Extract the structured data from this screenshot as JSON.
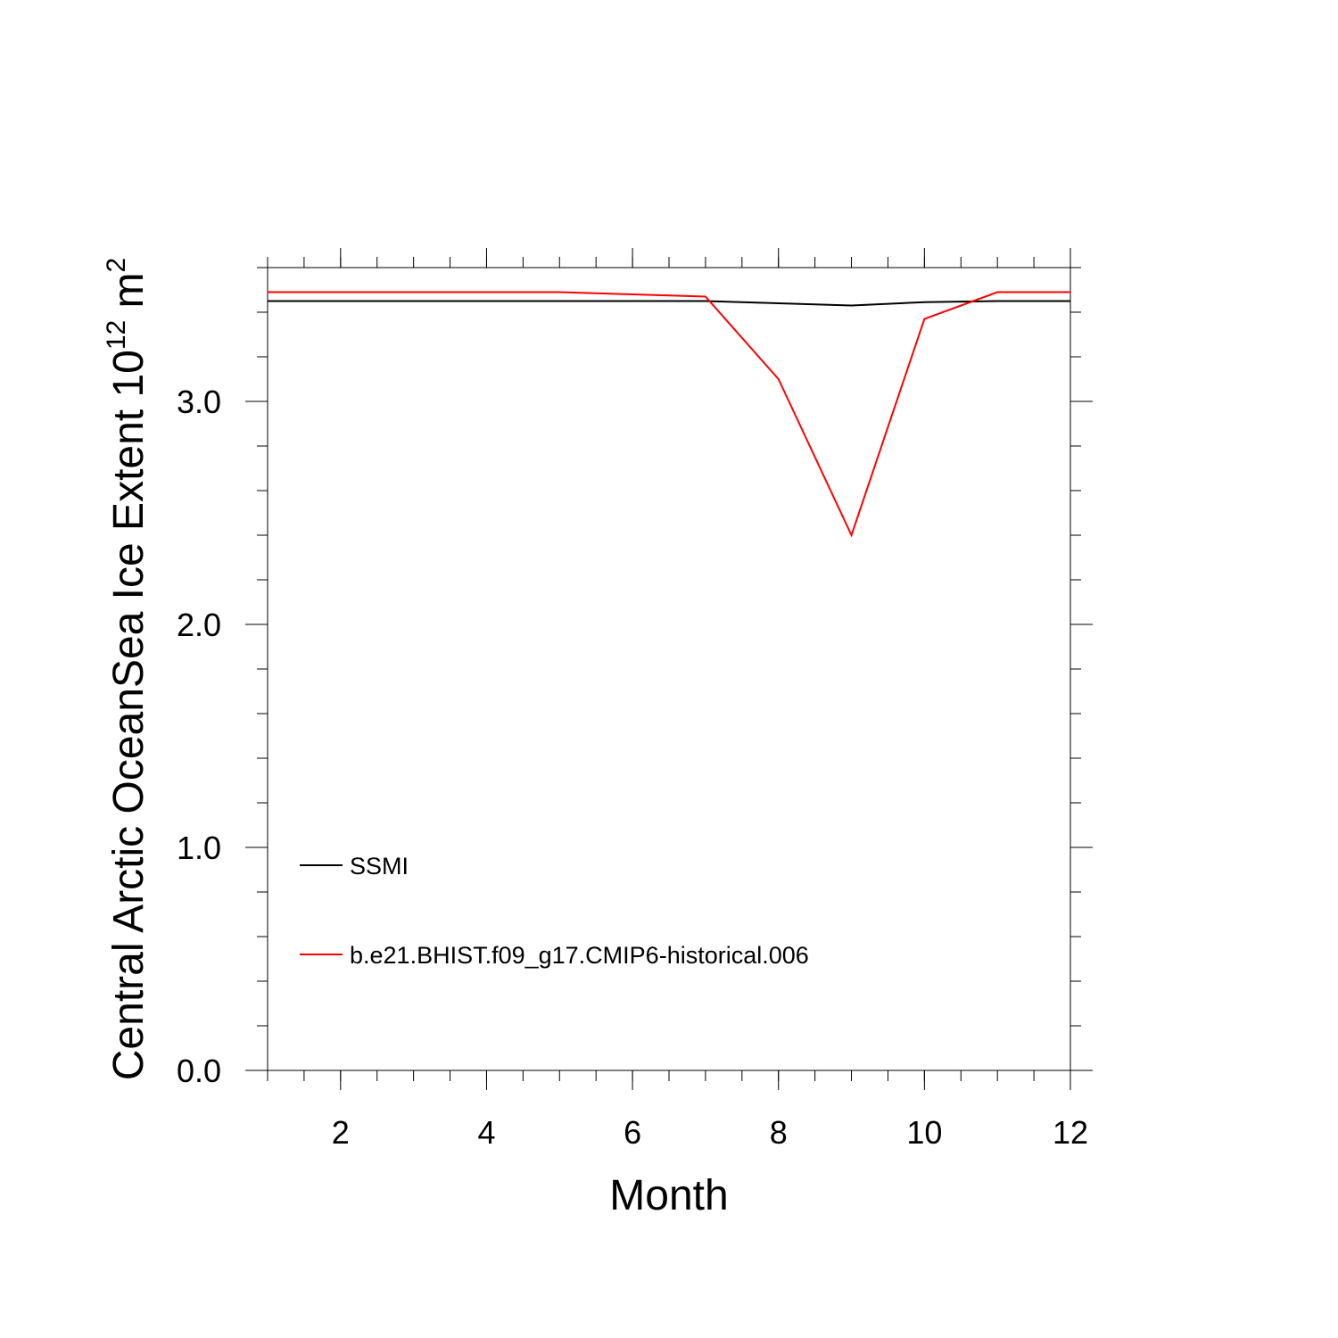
{
  "chart_data": {
    "type": "line",
    "title": "",
    "xlabel": "Month",
    "ylabel": {
      "text": "Central Arctic OceanSea Ice Extent 10",
      "exponent": "12",
      "unit": "m",
      "unit_exponent": "2"
    },
    "x": [
      1,
      2,
      3,
      4,
      5,
      6,
      7,
      8,
      9,
      10,
      11,
      12
    ],
    "xlim": [
      1,
      12
    ],
    "ylim": [
      0,
      3.6
    ],
    "x_ticks": [
      2,
      4,
      6,
      8,
      10,
      12
    ],
    "x_tick_labels": [
      "2",
      "4",
      "6",
      "8",
      "10",
      "12"
    ],
    "y_ticks": [
      0,
      1,
      2,
      3
    ],
    "y_tick_labels": [
      "0.0",
      "1.0",
      "2.0",
      "3.0"
    ],
    "grid": false,
    "legend_position": "bottom-left",
    "series": [
      {
        "name": "SSMI",
        "color": "#000000",
        "values": [
          3.45,
          3.45,
          3.45,
          3.45,
          3.45,
          3.45,
          3.45,
          3.44,
          3.43,
          3.445,
          3.45,
          3.45
        ]
      },
      {
        "name": "b.e21.BHIST.f09_g17.CMIP6-historical.006",
        "color": "#ff0000",
        "values": [
          3.49,
          3.49,
          3.49,
          3.49,
          3.49,
          3.48,
          3.47,
          3.1,
          2.4,
          3.37,
          3.49,
          3.49
        ]
      }
    ]
  }
}
